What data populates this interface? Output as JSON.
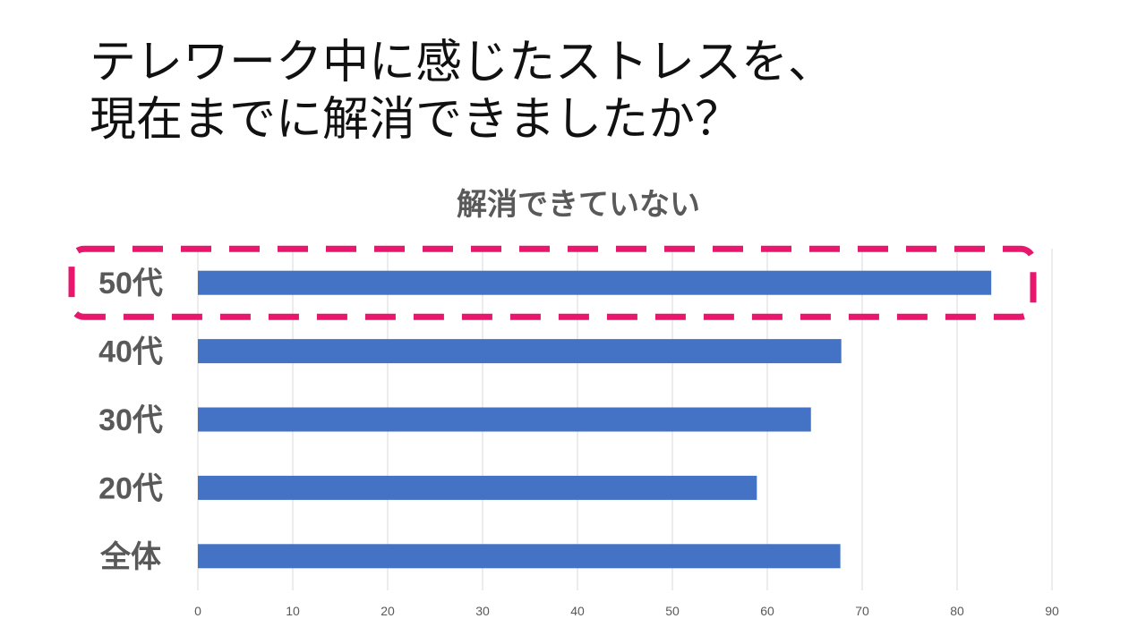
{
  "slide": {
    "title_lines": [
      "テレワーク中に感じたストレスを、",
      "現在までに解消できましたか？"
    ]
  },
  "chart_data": {
    "type": "bar",
    "orientation": "horizontal",
    "title": "解消できていない",
    "categories": [
      "50代",
      "40代",
      "30代",
      "20代",
      "全体"
    ],
    "values": [
      83.6,
      67.8,
      64.6,
      58.9,
      67.7
    ],
    "xlim": [
      0,
      90
    ],
    "xticks": [
      0,
      10,
      20,
      30,
      40,
      50,
      60,
      70,
      80,
      90
    ],
    "grid": "vertical",
    "legend": "none",
    "highlighted_category": "50代",
    "colors": {
      "bar": "#4472C4",
      "highlight": "#E8166D",
      "grid": "#D9D9D9",
      "label": "#595959",
      "tick": "#595959"
    }
  }
}
